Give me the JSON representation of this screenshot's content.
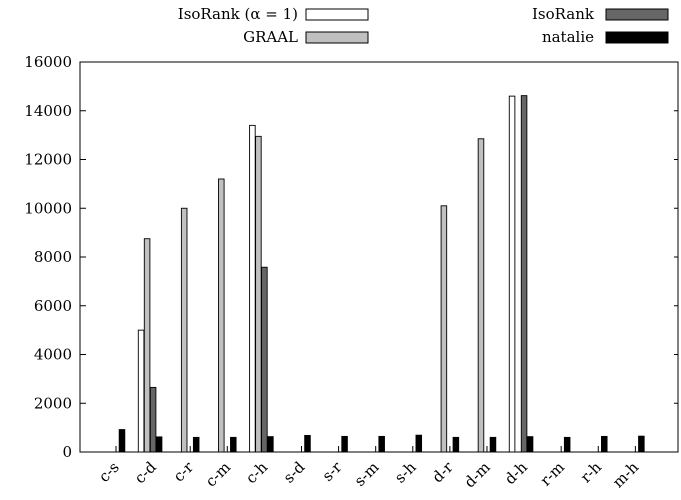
{
  "chart_data": {
    "type": "bar",
    "categories": [
      "c-s",
      "c-d",
      "c-r",
      "c-m",
      "c-h",
      "s-d",
      "s-r",
      "s-m",
      "s-h",
      "d-r",
      "d-m",
      "d-h",
      "r-m",
      "r-h",
      "m-h"
    ],
    "series": [
      {
        "name": "IsoRank (α = 1)",
        "color": "#ffffff",
        "values": [
          0,
          5000,
          0,
          0,
          13400,
          0,
          0,
          0,
          0,
          0,
          0,
          14600,
          0,
          0,
          0
        ]
      },
      {
        "name": "GRAAL",
        "color": "#c0c0c0",
        "values": [
          0,
          8750,
          10000,
          11200,
          12950,
          0,
          0,
          0,
          0,
          10100,
          12850,
          0,
          0,
          0,
          0
        ]
      },
      {
        "name": "IsoRank",
        "color": "#666666",
        "values": [
          0,
          2650,
          0,
          0,
          7580,
          0,
          0,
          0,
          0,
          0,
          0,
          14620,
          0,
          0,
          0
        ]
      },
      {
        "name": "natalie",
        "color": "#000000",
        "values": [
          920,
          620,
          600,
          600,
          630,
          680,
          640,
          640,
          690,
          600,
          600,
          630,
          600,
          640,
          650
        ]
      }
    ],
    "yticks": [
      "0",
      "2000",
      "4000",
      "6000",
      "8000",
      "10000",
      "12000",
      "14000",
      "16000"
    ],
    "ylim": [
      0,
      16000
    ],
    "title": "",
    "xlabel": "",
    "ylabel": "",
    "legend_position": "top"
  }
}
